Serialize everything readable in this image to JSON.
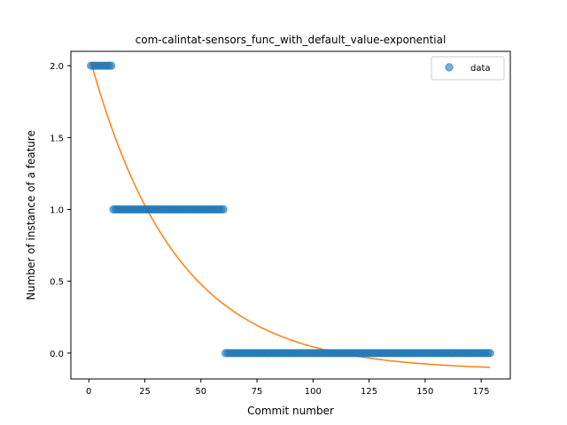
{
  "chart_data": {
    "type": "scatter",
    "title": "com-calintat-sensors_func_with_default_value-exponential",
    "xlabel": "Commit number",
    "ylabel": "Number of instance of a feature",
    "xlim": [
      -8,
      188
    ],
    "ylim": [
      -0.18,
      2.1
    ],
    "xticks": [
      0,
      25,
      50,
      75,
      100,
      125,
      150,
      175
    ],
    "yticks": [
      0.0,
      0.5,
      1.0,
      1.5,
      2.0
    ],
    "ytick_labels": [
      "0.0",
      "0.5",
      "1.0",
      "1.5",
      "2.0"
    ],
    "legend": {
      "placement": "top-right",
      "entries": [
        "data"
      ]
    },
    "grid": false,
    "colors": {
      "data": "#1f77b4",
      "fit": "#ff7f0e"
    },
    "series": [
      {
        "name": "data",
        "kind": "scatter",
        "segments": [
          {
            "x_start": 1,
            "x_end": 10,
            "y": 2.0
          },
          {
            "x_start": 11,
            "x_end": 60,
            "y": 1.0
          },
          {
            "x_start": 61,
            "x_end": 179,
            "y": 0.0
          }
        ]
      },
      {
        "kind": "line",
        "model": "exponential",
        "x_start": 1,
        "x_end": 179,
        "a": 2.2,
        "b": 0.026,
        "c": -0.12
      }
    ]
  }
}
